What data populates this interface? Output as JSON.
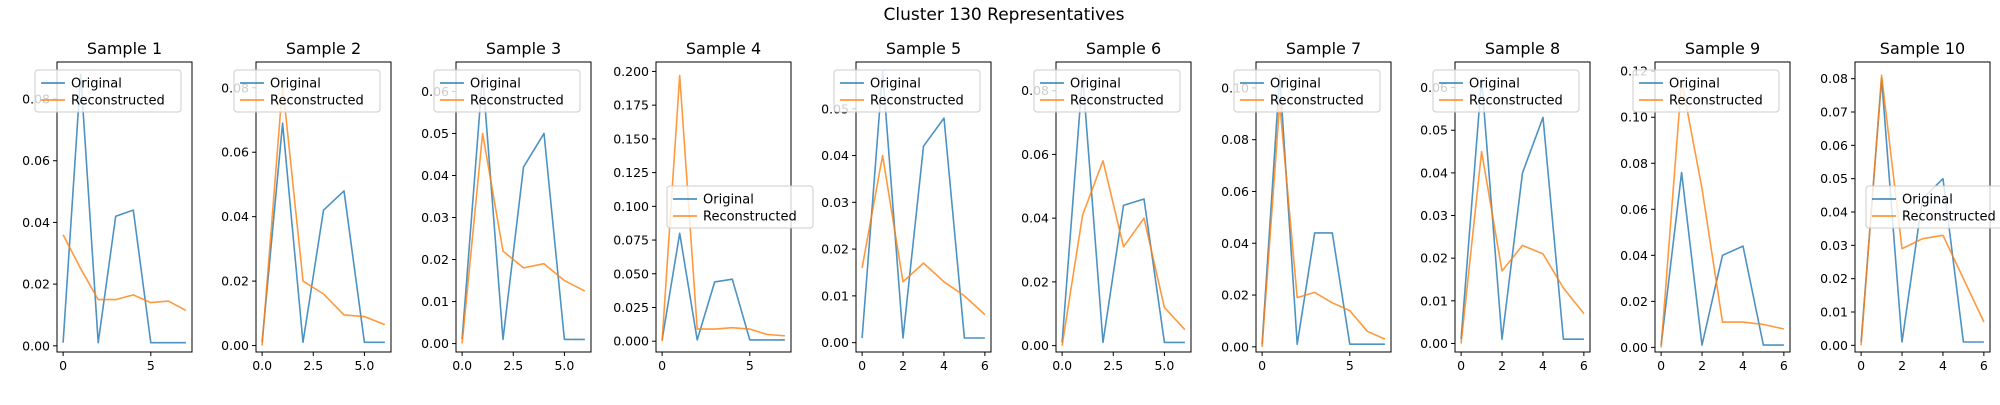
{
  "figure": {
    "title": "Cluster 130 Representatives"
  },
  "colors": {
    "original": "#1f77b4",
    "reconstructed": "#ff7f0e"
  },
  "chart_data": [
    {
      "type": "line",
      "title": "Sample 1",
      "x": [
        0,
        1,
        2,
        3,
        4,
        5,
        6,
        7
      ],
      "series": [
        {
          "name": "Original",
          "values": [
            0.001,
            0.088,
            0.001,
            0.042,
            0.044,
            0.001,
            0.001,
            0.001
          ]
        },
        {
          "name": "Reconstructed",
          "values": [
            0.036,
            0.025,
            0.015,
            0.015,
            0.0165,
            0.014,
            0.0145,
            0.0115
          ]
        }
      ],
      "xlim": [
        -0.35,
        7.35
      ],
      "ylim": [
        -0.002,
        0.092
      ],
      "xticks": [
        0,
        5
      ],
      "yticks": [
        0.0,
        0.02,
        0.04,
        0.06,
        0.08
      ],
      "xtick_labels": [
        "0",
        "5"
      ],
      "ytick_labels": [
        "0.00",
        "0.02",
        "0.04",
        "0.06",
        "0.08"
      ],
      "legend": "upper-left"
    },
    {
      "type": "line",
      "title": "Sample 2",
      "x": [
        0,
        1,
        2,
        3,
        4,
        5,
        6
      ],
      "series": [
        {
          "name": "Original",
          "values": [
            0.001,
            0.069,
            0.001,
            0.042,
            0.048,
            0.001,
            0.001
          ]
        },
        {
          "name": "Reconstructed",
          "values": [
            0.0,
            0.081,
            0.02,
            0.016,
            0.0095,
            0.009,
            0.0065
          ]
        }
      ],
      "xlim": [
        -0.3,
        6.3
      ],
      "ylim": [
        -0.002,
        0.088
      ],
      "xticks": [
        0,
        2.5,
        5
      ],
      "yticks": [
        0.0,
        0.02,
        0.04,
        0.06,
        0.08
      ],
      "xtick_labels": [
        "0.0",
        "2.5",
        "5.0"
      ],
      "ytick_labels": [
        "0.00",
        "0.02",
        "0.04",
        "0.06",
        "0.08"
      ],
      "legend": "upper-left"
    },
    {
      "type": "line",
      "title": "Sample 3",
      "x": [
        0,
        1,
        2,
        3,
        4,
        5,
        6
      ],
      "series": [
        {
          "name": "Original",
          "values": [
            0.001,
            0.064,
            0.001,
            0.042,
            0.05,
            0.001,
            0.001
          ]
        },
        {
          "name": "Reconstructed",
          "values": [
            0.0,
            0.05,
            0.022,
            0.018,
            0.019,
            0.015,
            0.0125
          ]
        }
      ],
      "xlim": [
        -0.3,
        6.3
      ],
      "ylim": [
        -0.002,
        0.067
      ],
      "xticks": [
        0,
        2.5,
        5
      ],
      "yticks": [
        0.0,
        0.01,
        0.02,
        0.03,
        0.04,
        0.05,
        0.06
      ],
      "xtick_labels": [
        "0.0",
        "2.5",
        "5.0"
      ],
      "ytick_labels": [
        "0.00",
        "0.01",
        "0.02",
        "0.03",
        "0.04",
        "0.05",
        "0.06"
      ],
      "legend": "upper-left"
    },
    {
      "type": "line",
      "title": "Sample 4",
      "x": [
        0,
        1,
        2,
        3,
        4,
        5,
        6,
        7
      ],
      "series": [
        {
          "name": "Original",
          "values": [
            0.001,
            0.08,
            0.001,
            0.044,
            0.046,
            0.001,
            0.001,
            0.001
          ]
        },
        {
          "name": "Reconstructed",
          "values": [
            0.0,
            0.197,
            0.009,
            0.009,
            0.01,
            0.009,
            0.005,
            0.004
          ]
        }
      ],
      "xlim": [
        -0.35,
        7.35
      ],
      "ylim": [
        -0.008,
        0.207
      ],
      "xticks": [
        0,
        5
      ],
      "yticks": [
        0.0,
        0.025,
        0.05,
        0.075,
        0.1,
        0.125,
        0.15,
        0.175,
        0.2
      ],
      "xtick_labels": [
        "0",
        "5"
      ],
      "ytick_labels": [
        "0.000",
        "0.025",
        "0.050",
        "0.075",
        "0.100",
        "0.125",
        "0.150",
        "0.175",
        "0.200"
      ],
      "legend": "center-right"
    },
    {
      "type": "line",
      "title": "Sample 5",
      "x": [
        0,
        1,
        2,
        3,
        4,
        5,
        6
      ],
      "series": [
        {
          "name": "Original",
          "values": [
            0.001,
            0.058,
            0.001,
            0.042,
            0.048,
            0.001,
            0.001
          ]
        },
        {
          "name": "Reconstructed",
          "values": [
            0.016,
            0.04,
            0.013,
            0.017,
            0.013,
            0.01,
            0.006
          ]
        }
      ],
      "xlim": [
        -0.3,
        6.3
      ],
      "ylim": [
        -0.002,
        0.06
      ],
      "xticks": [
        0,
        2,
        4,
        6
      ],
      "yticks": [
        0.0,
        0.01,
        0.02,
        0.03,
        0.04,
        0.05
      ],
      "xtick_labels": [
        "0",
        "2",
        "4",
        "6"
      ],
      "ytick_labels": [
        "0.00",
        "0.01",
        "0.02",
        "0.03",
        "0.04",
        "0.05"
      ],
      "legend": "upper-left"
    },
    {
      "type": "line",
      "title": "Sample 6",
      "x": [
        0,
        1,
        2,
        3,
        4,
        5,
        6
      ],
      "series": [
        {
          "name": "Original",
          "values": [
            0.001,
            0.085,
            0.001,
            0.044,
            0.046,
            0.001,
            0.001
          ]
        },
        {
          "name": "Reconstructed",
          "values": [
            0.0,
            0.041,
            0.058,
            0.031,
            0.04,
            0.012,
            0.005
          ]
        }
      ],
      "xlim": [
        -0.3,
        6.3
      ],
      "ylim": [
        -0.002,
        0.089
      ],
      "xticks": [
        0,
        2.5,
        5
      ],
      "yticks": [
        0.0,
        0.02,
        0.04,
        0.06,
        0.08
      ],
      "xtick_labels": [
        "0.0",
        "2.5",
        "5.0"
      ],
      "ytick_labels": [
        "0.00",
        "0.02",
        "0.04",
        "0.06",
        "0.08"
      ],
      "legend": "upper-left"
    },
    {
      "type": "line",
      "title": "Sample 7",
      "x": [
        0,
        1,
        2,
        3,
        4,
        5,
        6,
        7
      ],
      "series": [
        {
          "name": "Original",
          "values": [
            0.001,
            0.105,
            0.001,
            0.044,
            0.044,
            0.001,
            0.001,
            0.001
          ]
        },
        {
          "name": "Reconstructed",
          "values": [
            0.0,
            0.094,
            0.019,
            0.021,
            0.017,
            0.014,
            0.006,
            0.003
          ]
        }
      ],
      "xlim": [
        -0.35,
        7.35
      ],
      "ylim": [
        -0.002,
        0.11
      ],
      "xticks": [
        0,
        5
      ],
      "yticks": [
        0.0,
        0.02,
        0.04,
        0.06,
        0.08,
        0.1
      ],
      "xtick_labels": [
        "0",
        "5"
      ],
      "ytick_labels": [
        "0.00",
        "0.02",
        "0.04",
        "0.06",
        "0.08",
        "0.10"
      ],
      "legend": "upper-left"
    },
    {
      "type": "line",
      "title": "Sample 8",
      "x": [
        0,
        1,
        2,
        3,
        4,
        5,
        6
      ],
      "series": [
        {
          "name": "Original",
          "values": [
            0.001,
            0.062,
            0.001,
            0.04,
            0.053,
            0.001,
            0.001
          ]
        },
        {
          "name": "Reconstructed",
          "values": [
            0.0,
            0.045,
            0.017,
            0.023,
            0.021,
            0.013,
            0.007
          ]
        }
      ],
      "xlim": [
        -0.3,
        6.3
      ],
      "ylim": [
        -0.002,
        0.066
      ],
      "xticks": [
        0,
        2,
        4,
        6
      ],
      "yticks": [
        0.0,
        0.01,
        0.02,
        0.03,
        0.04,
        0.05,
        0.06
      ],
      "xtick_labels": [
        "0",
        "2",
        "4",
        "6"
      ],
      "ytick_labels": [
        "0.00",
        "0.01",
        "0.02",
        "0.03",
        "0.04",
        "0.05",
        "0.06"
      ],
      "legend": "upper-left"
    },
    {
      "type": "line",
      "title": "Sample 9",
      "x": [
        0,
        1,
        2,
        3,
        4,
        5,
        6
      ],
      "series": [
        {
          "name": "Original",
          "values": [
            0.001,
            0.076,
            0.001,
            0.04,
            0.044,
            0.001,
            0.001
          ]
        },
        {
          "name": "Reconstructed",
          "values": [
            0.0,
            0.116,
            0.069,
            0.011,
            0.011,
            0.01,
            0.008
          ]
        }
      ],
      "xlim": [
        -0.3,
        6.3
      ],
      "ylim": [
        -0.002,
        0.124
      ],
      "xticks": [
        0,
        2,
        4,
        6
      ],
      "yticks": [
        0.0,
        0.02,
        0.04,
        0.06,
        0.08,
        0.1,
        0.12
      ],
      "xtick_labels": [
        "0",
        "2",
        "4",
        "6"
      ],
      "ytick_labels": [
        "0.00",
        "0.02",
        "0.04",
        "0.06",
        "0.08",
        "0.10",
        "0.12"
      ],
      "legend": "upper-left"
    },
    {
      "type": "line",
      "title": "Sample 10",
      "x": [
        0,
        1,
        2,
        3,
        4,
        5,
        6
      ],
      "series": [
        {
          "name": "Original",
          "values": [
            0.001,
            0.08,
            0.001,
            0.044,
            0.05,
            0.001,
            0.001
          ]
        },
        {
          "name": "Reconstructed",
          "values": [
            0.0,
            0.081,
            0.029,
            0.032,
            0.033,
            0.02,
            0.007
          ]
        }
      ],
      "xlim": [
        -0.3,
        6.3
      ],
      "ylim": [
        -0.002,
        0.085
      ],
      "xticks": [
        0,
        2,
        4,
        6
      ],
      "yticks": [
        0.0,
        0.01,
        0.02,
        0.03,
        0.04,
        0.05,
        0.06,
        0.07,
        0.08
      ],
      "xtick_labels": [
        "0",
        "2",
        "4",
        "6"
      ],
      "ytick_labels": [
        "0.00",
        "0.01",
        "0.02",
        "0.03",
        "0.04",
        "0.05",
        "0.06",
        "0.07",
        "0.08"
      ],
      "legend": "center-right"
    }
  ]
}
